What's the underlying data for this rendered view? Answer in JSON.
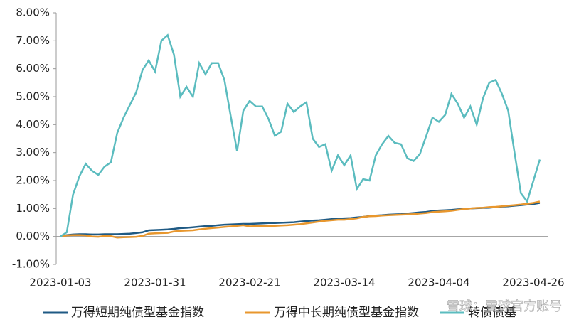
{
  "chart_data": {
    "type": "line",
    "categories": [
      "2023-01-03",
      null,
      null,
      null,
      null,
      null,
      null,
      null,
      null,
      null,
      null,
      null,
      null,
      null,
      null,
      "2023-01-31",
      null,
      null,
      null,
      null,
      null,
      null,
      null,
      null,
      null,
      null,
      null,
      null,
      null,
      null,
      "2023-02-21",
      null,
      null,
      null,
      null,
      null,
      null,
      null,
      null,
      null,
      null,
      null,
      null,
      null,
      null,
      "2023-03-14",
      null,
      null,
      null,
      null,
      null,
      null,
      null,
      null,
      null,
      null,
      null,
      null,
      null,
      null,
      "2023-04-04",
      null,
      null,
      null,
      null,
      null,
      null,
      null,
      null,
      null,
      null,
      null,
      null,
      null,
      null,
      "2023-04-26",
      null
    ],
    "series": [
      {
        "name": "万得短期纯债型基金指数",
        "color": "#1f5a84",
        "values": [
          0.0,
          0.05,
          0.07,
          0.08,
          0.08,
          0.07,
          0.07,
          0.08,
          0.08,
          0.08,
          0.09,
          0.1,
          0.12,
          0.15,
          0.22,
          0.23,
          0.24,
          0.25,
          0.27,
          0.3,
          0.31,
          0.33,
          0.35,
          0.37,
          0.38,
          0.4,
          0.42,
          0.43,
          0.44,
          0.45,
          0.45,
          0.46,
          0.47,
          0.48,
          0.48,
          0.49,
          0.5,
          0.51,
          0.53,
          0.55,
          0.57,
          0.58,
          0.6,
          0.62,
          0.64,
          0.65,
          0.66,
          0.68,
          0.7,
          0.73,
          0.75,
          0.76,
          0.78,
          0.79,
          0.8,
          0.82,
          0.84,
          0.86,
          0.88,
          0.91,
          0.93,
          0.94,
          0.95,
          0.97,
          0.99,
          1.0,
          1.01,
          1.02,
          1.03,
          1.05,
          1.07,
          1.08,
          1.1,
          1.12,
          1.14,
          1.16,
          1.2
        ]
      },
      {
        "name": "万得中长期纯债型基金指数",
        "color": "#e8972e",
        "values": [
          0.0,
          0.04,
          0.05,
          0.05,
          0.04,
          0.0,
          -0.01,
          0.02,
          0.01,
          -0.04,
          -0.03,
          -0.02,
          -0.01,
          0.02,
          0.1,
          0.11,
          0.12,
          0.13,
          0.18,
          0.2,
          0.21,
          0.22,
          0.25,
          0.28,
          0.3,
          0.32,
          0.34,
          0.36,
          0.38,
          0.4,
          0.36,
          0.37,
          0.38,
          0.38,
          0.38,
          0.39,
          0.4,
          0.42,
          0.44,
          0.47,
          0.5,
          0.53,
          0.56,
          0.58,
          0.6,
          0.6,
          0.62,
          0.65,
          0.7,
          0.72,
          0.73,
          0.75,
          0.76,
          0.77,
          0.78,
          0.79,
          0.8,
          0.82,
          0.84,
          0.87,
          0.89,
          0.9,
          0.92,
          0.95,
          0.98,
          1.0,
          1.02,
          1.03,
          1.05,
          1.06,
          1.08,
          1.1,
          1.12,
          1.14,
          1.17,
          1.2,
          1.25
        ]
      },
      {
        "name": "转债债基",
        "color": "#5bbcbf",
        "values": [
          0,
          0.15,
          1.5,
          2.15,
          2.6,
          2.35,
          2.2,
          2.5,
          2.65,
          3.7,
          4.25,
          4.7,
          5.15,
          5.95,
          6.3,
          5.9,
          7.0,
          7.2,
          6.5,
          5.0,
          5.35,
          5.0,
          6.2,
          5.8,
          6.2,
          6.2,
          5.6,
          4.3,
          3.05,
          4.5,
          4.85,
          4.65,
          4.65,
          4.2,
          3.6,
          3.75,
          4.75,
          4.45,
          4.65,
          4.8,
          3.5,
          3.2,
          3.3,
          2.35,
          2.9,
          2.55,
          2.9,
          1.7,
          2.05,
          2.0,
          2.9,
          3.3,
          3.6,
          3.35,
          3.3,
          2.8,
          2.7,
          2.95,
          3.6,
          4.25,
          4.1,
          4.35,
          5.1,
          4.75,
          4.25,
          4.65,
          4.0,
          4.95,
          5.5,
          5.6,
          5.1,
          4.5,
          3.0,
          1.55,
          1.25,
          2.0,
          2.75
        ]
      }
    ],
    "ylim": [
      -1,
      8
    ],
    "yticks": [
      {
        "value": -1,
        "label": "-1.00%"
      },
      {
        "value": 0,
        "label": "0.00%"
      },
      {
        "value": 1,
        "label": "1.00%"
      },
      {
        "value": 2,
        "label": "2.00%"
      },
      {
        "value": 3,
        "label": "3.00%"
      },
      {
        "value": 4,
        "label": "4.00%"
      },
      {
        "value": 5,
        "label": "5.00%"
      },
      {
        "value": 6,
        "label": "6.00%"
      },
      {
        "value": 7,
        "label": "7.00%"
      },
      {
        "value": 8,
        "label": "8.00%"
      }
    ],
    "grid": false,
    "watermark": "雪球：雪球官方账号"
  }
}
